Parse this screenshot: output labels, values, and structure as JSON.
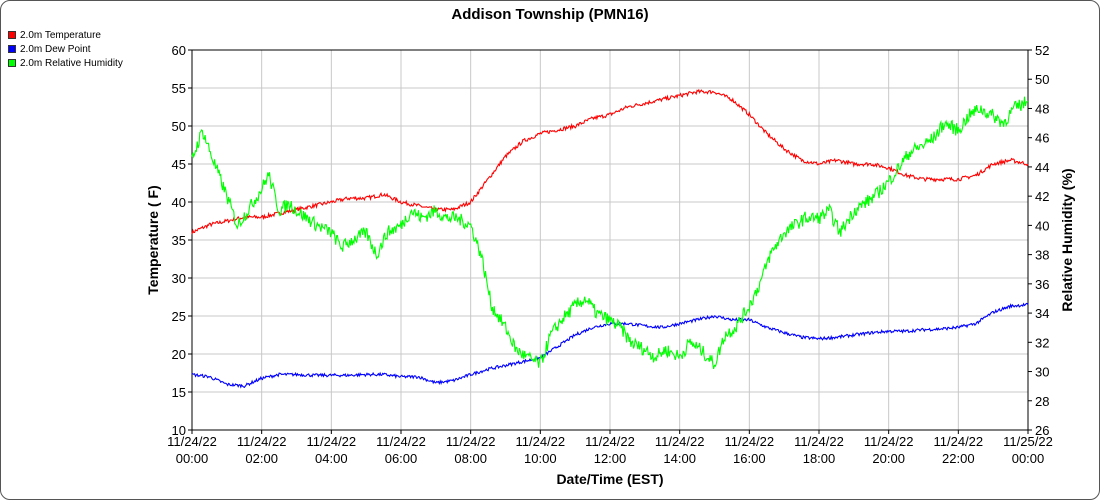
{
  "chart_data": {
    "type": "line",
    "title": "Addison Township (PMN16)",
    "xlabel": "Date/Time (EST)",
    "ylabel_left": "Temperature ( F)",
    "ylabel_right": "Relative Humidity (%)",
    "ylim_left": [
      10,
      60
    ],
    "ylim_right": [
      26,
      52
    ],
    "xlim_hours": [
      0,
      24
    ],
    "grid": true,
    "legend_position": "top-left",
    "x_ticks": [
      {
        "date": "11/24/22",
        "time": "00:00"
      },
      {
        "date": "11/24/22",
        "time": "02:00"
      },
      {
        "date": "11/24/22",
        "time": "04:00"
      },
      {
        "date": "11/24/22",
        "time": "06:00"
      },
      {
        "date": "11/24/22",
        "time": "08:00"
      },
      {
        "date": "11/24/22",
        "time": "10:00"
      },
      {
        "date": "11/24/22",
        "time": "12:00"
      },
      {
        "date": "11/24/22",
        "time": "14:00"
      },
      {
        "date": "11/24/22",
        "time": "16:00"
      },
      {
        "date": "11/24/22",
        "time": "18:00"
      },
      {
        "date": "11/24/22",
        "time": "20:00"
      },
      {
        "date": "11/24/22",
        "time": "22:00"
      },
      {
        "date": "11/25/22",
        "time": "00:00"
      }
    ],
    "y_ticks_left": [
      10,
      15,
      20,
      25,
      30,
      35,
      40,
      45,
      50,
      55,
      60
    ],
    "y_ticks_right": [
      26,
      28,
      30,
      32,
      34,
      36,
      38,
      40,
      42,
      44,
      46,
      48,
      50,
      52
    ],
    "series": [
      {
        "name": "2.0m Temperature",
        "color": "#ff0000",
        "axis": "left",
        "x": [
          0,
          0.5,
          1,
          1.5,
          2,
          2.5,
          3,
          3.5,
          4,
          4.5,
          5,
          5.5,
          6,
          6.5,
          7,
          7.5,
          8,
          8.5,
          9,
          9.5,
          10,
          10.5,
          11,
          11.5,
          12,
          12.5,
          13,
          13.5,
          14,
          14.5,
          15,
          15.5,
          16,
          16.5,
          17,
          17.5,
          18,
          18.5,
          19,
          19.5,
          20,
          20.5,
          21,
          21.5,
          22,
          22.5,
          23,
          23.5,
          24
        ],
        "values": [
          36,
          37,
          37.5,
          38,
          38,
          38.5,
          39,
          39.5,
          40,
          40.5,
          40.5,
          41,
          40,
          39.5,
          39,
          39,
          40,
          43,
          46,
          48,
          49,
          49.5,
          50,
          51,
          51.5,
          52.5,
          53,
          53.5,
          54,
          54.5,
          54.5,
          53.5,
          51.5,
          49,
          47,
          45.5,
          45,
          45.5,
          45,
          45,
          44.5,
          43.5,
          43,
          43,
          43,
          43.5,
          45,
          45.5,
          45
        ]
      },
      {
        "name": "2.0m Dew Point",
        "color": "#0000ff",
        "axis": "left",
        "x": [
          0,
          0.5,
          1,
          1.5,
          2,
          2.5,
          3,
          3.5,
          4,
          4.5,
          5,
          5.5,
          6,
          6.5,
          7,
          7.5,
          8,
          8.5,
          9,
          9.5,
          10,
          10.5,
          11,
          11.5,
          12,
          12.5,
          13,
          13.5,
          14,
          14.5,
          15,
          15.5,
          16,
          16.5,
          17,
          17.5,
          18,
          18.5,
          19,
          19.5,
          20,
          20.5,
          21,
          21.5,
          22,
          22.5,
          23,
          23.5,
          24
        ],
        "values": [
          17.3,
          17,
          16,
          15.8,
          16.8,
          17.3,
          17.3,
          17.2,
          17.2,
          17.2,
          17.3,
          17.3,
          17,
          17,
          16.2,
          16.5,
          17.3,
          18,
          18.5,
          19,
          19.5,
          21,
          22.5,
          23.5,
          24,
          24,
          23.7,
          23.5,
          24,
          24.5,
          25,
          24.5,
          24.5,
          23.5,
          22.8,
          22.2,
          22,
          22.2,
          22.5,
          22.8,
          23,
          23,
          23.2,
          23.3,
          23.5,
          24,
          25.5,
          26.3,
          26.5
        ]
      },
      {
        "name": "2.0m Relative Humidity",
        "color": "#00ff00",
        "axis": "right",
        "x": [
          0,
          0.3,
          0.6,
          1,
          1.3,
          1.6,
          2,
          2.2,
          2.5,
          2.8,
          3,
          3.3,
          3.6,
          4,
          4.3,
          4.6,
          5,
          5.3,
          5.6,
          6,
          6.3,
          6.6,
          7,
          7.3,
          7.6,
          8,
          8.3,
          8.6,
          9,
          9.3,
          9.6,
          10,
          10.3,
          10.6,
          11,
          11.3,
          11.6,
          12,
          12.3,
          12.6,
          13,
          13.3,
          13.6,
          14,
          14.3,
          14.6,
          15,
          15.3,
          15.6,
          16,
          16.3,
          16.6,
          17,
          17.3,
          17.6,
          18,
          18.3,
          18.6,
          19,
          19.3,
          19.6,
          20,
          20.3,
          20.6,
          21,
          21.3,
          21.6,
          22,
          22.3,
          22.6,
          23,
          23.3,
          23.6,
          24
        ],
        "values": [
          44.5,
          46.5,
          44.5,
          42,
          40,
          41,
          42.5,
          43.5,
          41,
          41.5,
          41,
          40.5,
          40,
          39.5,
          38.5,
          39,
          39.5,
          38,
          39.5,
          40,
          41,
          40.5,
          41,
          40.5,
          40.5,
          40,
          38,
          34.5,
          33,
          31.5,
          31,
          30.5,
          32.5,
          33.5,
          34.5,
          35,
          34,
          33.5,
          33,
          32,
          31.5,
          31,
          31.5,
          31,
          32,
          31.5,
          30.5,
          32.5,
          33,
          34.5,
          36,
          38,
          39.5,
          40,
          40.5,
          40.5,
          41,
          39.5,
          41,
          41.5,
          42,
          43,
          44,
          45,
          45.5,
          46,
          47,
          46.5,
          47.5,
          48,
          47.5,
          47,
          48,
          48.5
        ]
      }
    ]
  }
}
